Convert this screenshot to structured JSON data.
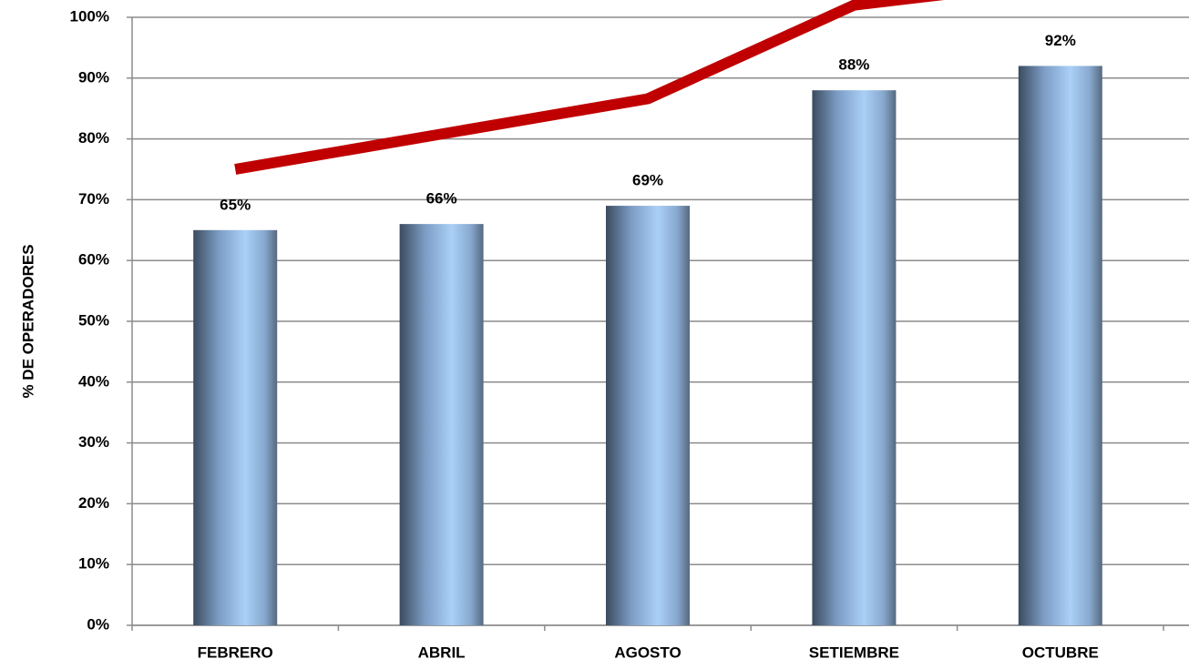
{
  "chart_data": {
    "type": "bar",
    "axis_label": "% DE OPERADORES",
    "categories": [
      "FEBRERO",
      "ABRIL",
      "AGOSTO",
      "SETIEMBRE",
      "OCTUBRE"
    ],
    "series": [
      {
        "type": "bar",
        "color": "#8fb3e0",
        "values": [
          65,
          66,
          69,
          88,
          92
        ],
        "value_labels": [
          "65%",
          "66%",
          "69%",
          "88%",
          "92%"
        ]
      },
      {
        "type": "line",
        "color": "#c00000",
        "values": [
          75,
          80.8,
          86.6,
          102,
          106
        ]
      }
    ],
    "ylim": [
      0,
      100
    ],
    "yticks": [
      {
        "value": 0,
        "label": "0%"
      },
      {
        "value": 10,
        "label": "10%"
      },
      {
        "value": 20,
        "label": "20%"
      },
      {
        "value": 30,
        "label": "30%"
      },
      {
        "value": 40,
        "label": "40%"
      },
      {
        "value": 50,
        "label": "50%"
      },
      {
        "value": 60,
        "label": "60%"
      },
      {
        "value": 70,
        "label": "70%"
      },
      {
        "value": 80,
        "label": "80%"
      },
      {
        "value": 90,
        "label": "90%"
      },
      {
        "value": 100,
        "label": "100%"
      }
    ],
    "grid": true
  }
}
